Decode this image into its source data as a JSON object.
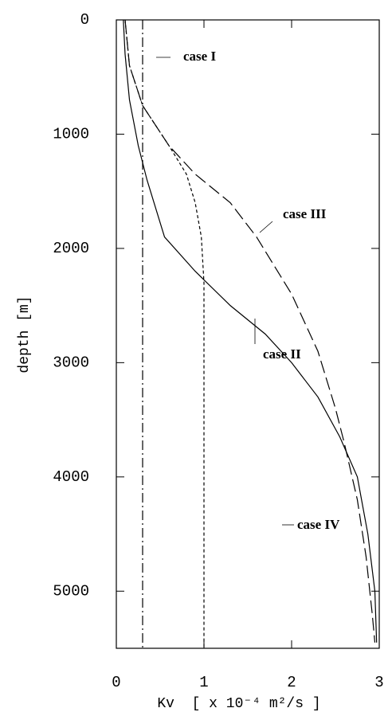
{
  "chart_data": {
    "type": "line",
    "xlabel": "Kv  [ x 10⁻⁴ m²/s ]",
    "ylabel": "depth [m]",
    "xlim": [
      0,
      3
    ],
    "ylim": [
      0,
      5500
    ],
    "y_inverted": true,
    "xticks": [
      0,
      1,
      2,
      3
    ],
    "yticks": [
      0,
      1000,
      2000,
      3000,
      4000,
      5000
    ],
    "annotations": [
      "case I",
      "case II",
      "case III",
      "case IV"
    ],
    "series": [
      {
        "name": "case I",
        "color": "#000000",
        "dash": "dashdot",
        "x": [
          0.3,
          0.3
        ],
        "y": [
          0,
          5500
        ]
      },
      {
        "name": "case II",
        "color": "#000000",
        "dash": "solid",
        "x": [
          0.08,
          0.1,
          0.15,
          0.25,
          0.35,
          0.55,
          0.9,
          1.3,
          1.7,
          2.0,
          2.3,
          2.55,
          2.75,
          2.87,
          2.95,
          2.97
        ],
        "y": [
          0,
          300,
          700,
          1100,
          1400,
          1900,
          2200,
          2500,
          2750,
          3000,
          3300,
          3650,
          4000,
          4500,
          5000,
          5450
        ]
      },
      {
        "name": "case III",
        "color": "#000000",
        "dash": "longdash",
        "x": [
          0.1,
          0.15,
          0.3,
          0.6,
          0.9,
          1.3,
          1.6,
          2.0,
          2.3,
          2.5,
          2.6,
          2.75,
          2.85,
          2.92,
          2.95
        ],
        "y": [
          0,
          400,
          750,
          1100,
          1350,
          1600,
          1900,
          2400,
          2900,
          3400,
          3700,
          4200,
          4700,
          5200,
          5450
        ]
      },
      {
        "name": "case IV",
        "color": "#000000",
        "dash": "shortdash",
        "x": [
          0.1,
          0.15,
          0.3,
          0.6,
          0.8,
          0.9,
          0.97,
          1.0,
          1.0
        ],
        "y": [
          0,
          400,
          750,
          1100,
          1350,
          1600,
          1900,
          2300,
          5500
        ]
      }
    ]
  }
}
